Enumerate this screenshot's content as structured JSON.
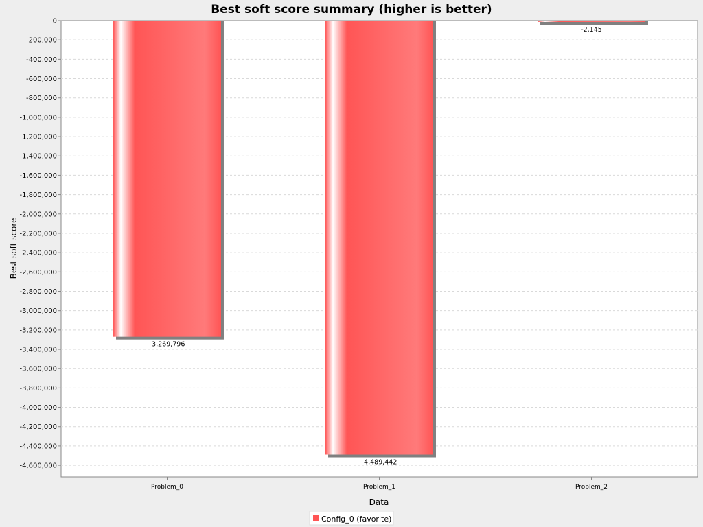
{
  "chart_data": {
    "type": "bar",
    "title": "Best soft score summary (higher is better)",
    "xlabel": "Data",
    "ylabel": "Best soft score",
    "categories": [
      "Problem_0",
      "Problem_1",
      "Problem_2"
    ],
    "series": [
      {
        "name": "Config_0 (favorite)",
        "values": [
          -3269796,
          -4489442,
          -2145
        ],
        "data_labels": [
          "-3,269,796",
          "-4,489,442",
          "-2,145"
        ]
      }
    ],
    "ylim": [
      -4720000,
      0
    ],
    "y_ticks": [
      0,
      -200000,
      -400000,
      -600000,
      -800000,
      -1000000,
      -1200000,
      -1400000,
      -1600000,
      -1800000,
      -2000000,
      -2200000,
      -2400000,
      -2600000,
      -2800000,
      -3000000,
      -3200000,
      -3400000,
      -3600000,
      -3800000,
      -4000000,
      -4200000,
      -4400000,
      -4600000
    ],
    "y_tick_labels": [
      "0",
      "-200,000",
      "-400,000",
      "-600,000",
      "-800,000",
      "-1,000,000",
      "-1,200,000",
      "-1,400,000",
      "-1,600,000",
      "-1,800,000",
      "-2,000,000",
      "-2,200,000",
      "-2,400,000",
      "-2,600,000",
      "-2,800,000",
      "-3,000,000",
      "-3,200,000",
      "-3,400,000",
      "-3,600,000",
      "-3,800,000",
      "-4,000,000",
      "-4,200,000",
      "-4,400,000",
      "-4,600,000"
    ],
    "grid": true,
    "legend_position": "bottom-center",
    "colors": {
      "bar": "#ff5555",
      "bar_light": "#ff7a7a",
      "shadow": "#808080",
      "plot_background": "#ffffff",
      "gridline": "#d9d9d9",
      "page_background": "#eeeeee"
    }
  }
}
